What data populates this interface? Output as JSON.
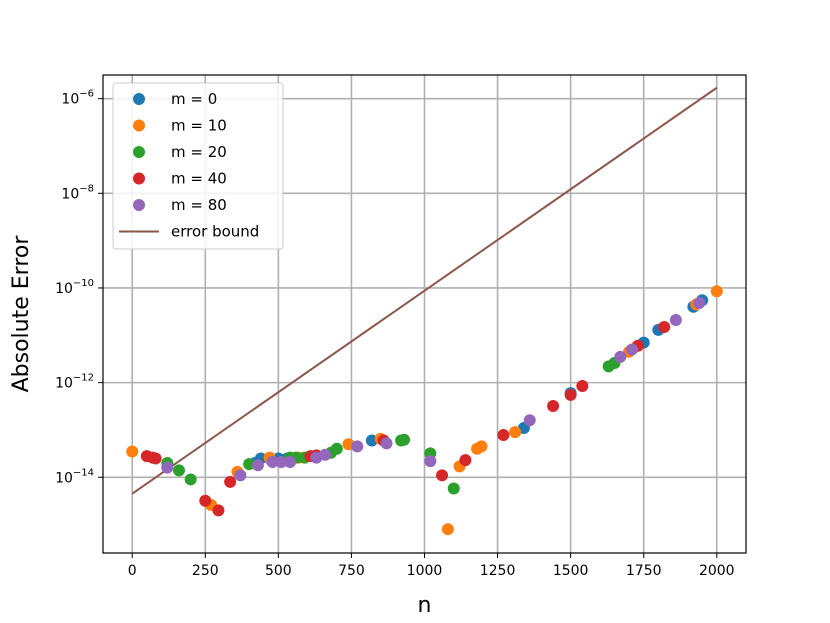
{
  "chart_data": {
    "type": "scatter",
    "xlabel": "n",
    "ylabel": "Absolute Error",
    "xlim": [
      -100,
      2100
    ],
    "ylim_log10": [
      -15.6,
      -5.5
    ],
    "y_scale": "log",
    "grid": true,
    "legend_position": "top-left",
    "x_ticks": [
      0,
      250,
      500,
      750,
      1000,
      1250,
      1500,
      1750,
      2000
    ],
    "x_tick_labels": [
      "0",
      "250",
      "500",
      "750",
      "1000",
      "1250",
      "1500",
      "1750",
      "2000"
    ],
    "y_ticks": [
      1e-14,
      1e-12,
      1e-10,
      1e-08,
      1e-06
    ],
    "y_tick_labels": [
      {
        "base": "10",
        "exp": "−14"
      },
      {
        "base": "10",
        "exp": "−12"
      },
      {
        "base": "10",
        "exp": "−10"
      },
      {
        "base": "10",
        "exp": "−8"
      },
      {
        "base": "10",
        "exp": "−6"
      }
    ],
    "series": [
      {
        "name": "m = 0",
        "color": "#1f77b4",
        "marker": "circle",
        "points": [
          [
            420,
            2e-14
          ],
          [
            440,
            2.5e-14
          ],
          [
            470,
            2.5e-14
          ],
          [
            500,
            2.5e-14
          ],
          [
            530,
            2.5e-14
          ],
          [
            820,
            6e-14
          ],
          [
            1340,
            1.1e-13
          ],
          [
            1500,
            6e-13
          ],
          [
            1750,
            7e-12
          ],
          [
            1800,
            1.3e-11
          ],
          [
            1920,
            4e-11
          ],
          [
            1950,
            5.5e-11
          ]
        ]
      },
      {
        "name": "m = 10",
        "color": "#ff7f0e",
        "marker": "circle",
        "points": [
          [
            0,
            3.5e-14
          ],
          [
            270,
            2.6e-15
          ],
          [
            360,
            1.3e-14
          ],
          [
            470,
            2.6e-14
          ],
          [
            570,
            2.6e-14
          ],
          [
            740,
            5e-14
          ],
          [
            850,
            6.5e-14
          ],
          [
            1080,
            8e-16
          ],
          [
            1120,
            1.7e-14
          ],
          [
            1180,
            4e-14
          ],
          [
            1195,
            4.5e-14
          ],
          [
            1310,
            9e-14
          ],
          [
            1700,
            4.5e-12
          ],
          [
            1930,
            4.5e-11
          ],
          [
            2000,
            8.5e-11
          ]
        ]
      },
      {
        "name": "m = 20",
        "color": "#2ca02c",
        "marker": "circle",
        "points": [
          [
            120,
            2e-14
          ],
          [
            160,
            1.4e-14
          ],
          [
            200,
            9e-15
          ],
          [
            400,
            1.9e-14
          ],
          [
            540,
            2.6e-14
          ],
          [
            560,
            2.6e-14
          ],
          [
            590,
            2.6e-14
          ],
          [
            680,
            3.3e-14
          ],
          [
            700,
            4e-14
          ],
          [
            920,
            6e-14
          ],
          [
            930,
            6.2e-14
          ],
          [
            1020,
            3.2e-14
          ],
          [
            1100,
            5.8e-15
          ],
          [
            1630,
            2.2e-12
          ],
          [
            1650,
            2.6e-12
          ]
        ]
      },
      {
        "name": "m = 40",
        "color": "#d62728",
        "marker": "circle",
        "points": [
          [
            50,
            2.8e-14
          ],
          [
            70,
            2.6e-14
          ],
          [
            80,
            2.5e-14
          ],
          [
            250,
            3.2e-15
          ],
          [
            295,
            2e-15
          ],
          [
            335,
            8e-15
          ],
          [
            610,
            2.8e-14
          ],
          [
            630,
            2.9e-14
          ],
          [
            860,
            6e-14
          ],
          [
            1060,
            1.1e-14
          ],
          [
            1140,
            2.3e-14
          ],
          [
            1270,
            7.8e-14
          ],
          [
            1440,
            3.2e-13
          ],
          [
            1500,
            5.5e-13
          ],
          [
            1540,
            8.5e-13
          ],
          [
            1730,
            6e-12
          ],
          [
            1820,
            1.5e-11
          ]
        ]
      },
      {
        "name": "m = 80",
        "color": "#9467bd",
        "marker": "circle",
        "points": [
          [
            120,
            1.6e-14
          ],
          [
            370,
            1.1e-14
          ],
          [
            430,
            1.8e-14
          ],
          [
            480,
            2.1e-14
          ],
          [
            510,
            2.1e-14
          ],
          [
            540,
            2.1e-14
          ],
          [
            630,
            2.6e-14
          ],
          [
            660,
            3e-14
          ],
          [
            770,
            4.5e-14
          ],
          [
            870,
            5.2e-14
          ],
          [
            1020,
            2.2e-14
          ],
          [
            1360,
            1.6e-13
          ],
          [
            1670,
            3.5e-12
          ],
          [
            1710,
            5e-12
          ],
          [
            1860,
            2.1e-11
          ],
          [
            1940,
            4.8e-11
          ]
        ]
      }
    ],
    "line_series": [
      {
        "name": "error bound",
        "color": "#8c564b",
        "points": [
          [
            0,
            4.5e-15
          ],
          [
            2000,
            1.7e-06
          ]
        ]
      }
    ]
  }
}
